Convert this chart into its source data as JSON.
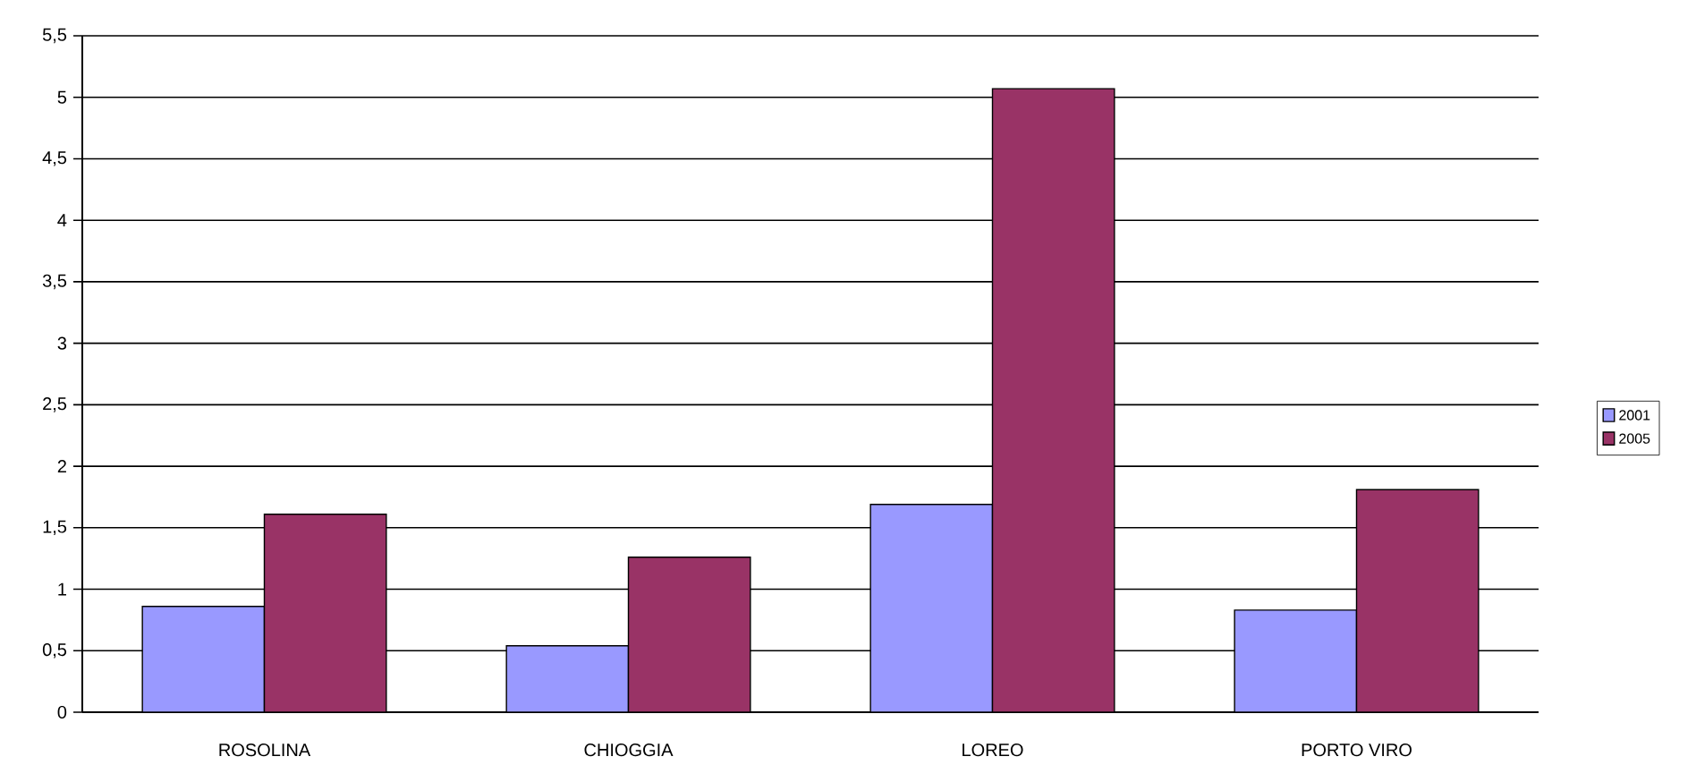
{
  "chart_data": {
    "type": "bar",
    "categories": [
      "ROSOLINA",
      "CHIOGGIA",
      "LOREO",
      "PORTO VIRO"
    ],
    "series": [
      {
        "name": "2001",
        "color": "#9999ff",
        "values": [
          0.86,
          0.54,
          1.69,
          0.83
        ]
      },
      {
        "name": "2005",
        "color": "#993366",
        "values": [
          1.61,
          1.26,
          5.07,
          1.81
        ]
      }
    ],
    "ylim": [
      0,
      5.5
    ],
    "yticks": [
      0,
      {
        "value": 0.5,
        "label": "0,5"
      },
      1,
      {
        "value": 1.5,
        "label": "1,5"
      },
      2,
      {
        "value": 2.5,
        "label": "2,5"
      },
      3,
      {
        "value": 3.5,
        "label": "3,5"
      },
      4,
      {
        "value": 4.5,
        "label": "4,5"
      },
      5,
      {
        "value": 5.5,
        "label": "5,5"
      }
    ],
    "grid": "y",
    "legend": "right"
  }
}
